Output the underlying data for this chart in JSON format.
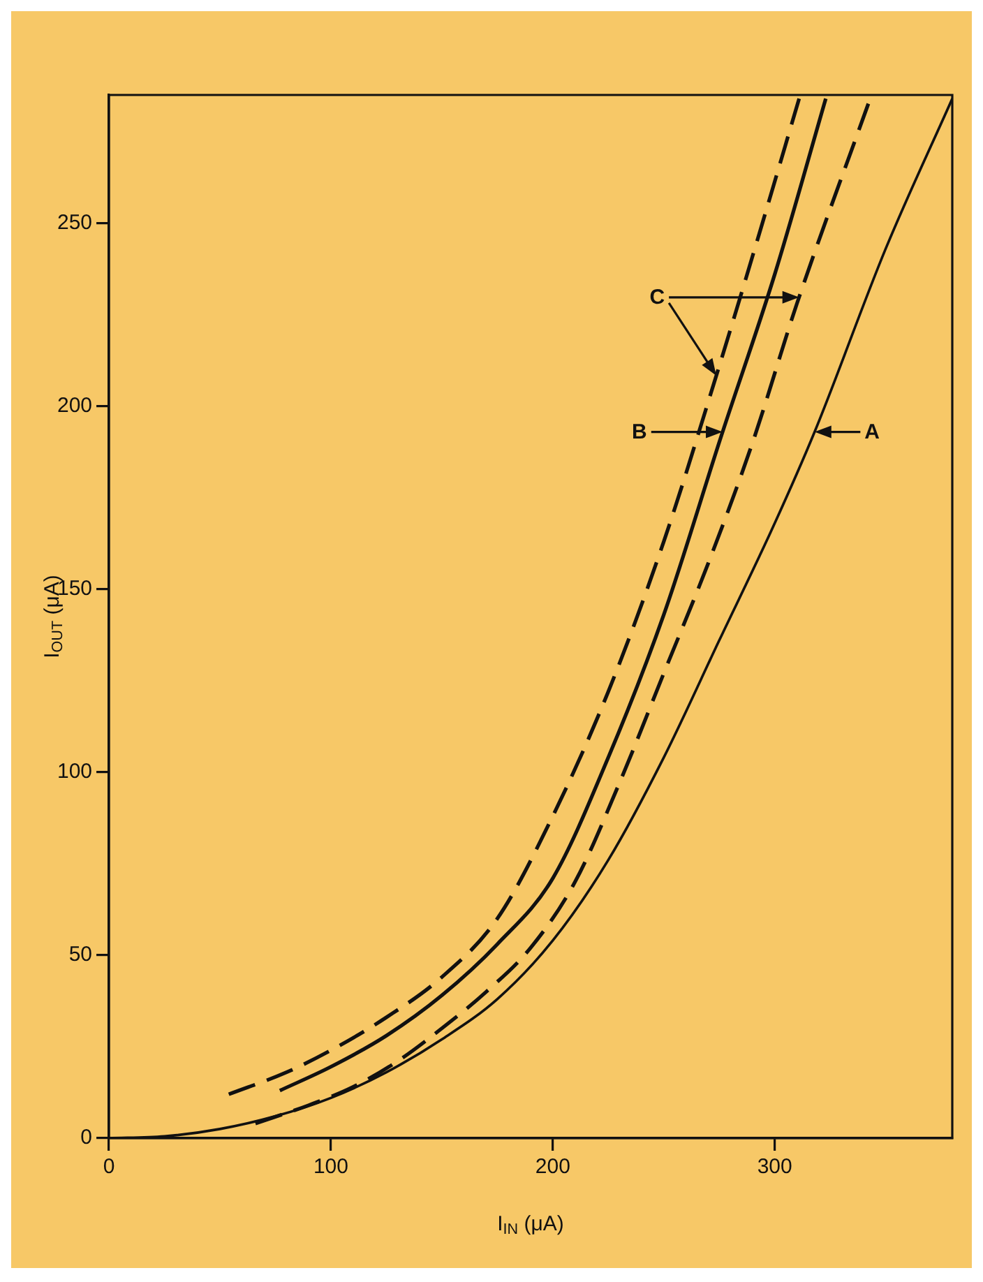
{
  "chart_data": {
    "type": "line",
    "xlabel": "I$_{IN}$ (μA)",
    "ylabel": "I$_{OUT}$ (μA)",
    "xlim": [
      0,
      380
    ],
    "ylim": [
      0,
      285
    ],
    "xticks": [
      0,
      100,
      200,
      300
    ],
    "yticks": [
      0,
      50,
      100,
      150,
      200,
      250
    ],
    "grid": false,
    "legend": false,
    "marker": "none",
    "series": [
      {
        "color": "#111111",
        "line_style": "solid",
        "x": [
          0,
          25,
          50,
          75,
          100,
          125,
          150,
          175,
          200,
          225,
          250,
          275,
          300,
          318,
          350,
          380
        ],
        "values": [
          0,
          0.5,
          2.5,
          6,
          11,
          18,
          27,
          38,
          54,
          76,
          104,
          136,
          168,
          193,
          243,
          284
        ]
      },
      {
        "color": "#111111",
        "line_style": "solid",
        "x": [
          77,
          100,
          125,
          150,
          175,
          200,
          225,
          250,
          276,
          300,
          323
        ],
        "values": [
          13,
          19.5,
          28,
          39,
          53,
          71,
          104,
          143,
          192,
          236,
          284
        ]
      },
      {
        "color": "#111111",
        "line_style": "dashed",
        "x": [
          54,
          80,
          100,
          125,
          150,
          175,
          200,
          225,
          250,
          273,
          292,
          311
        ],
        "values": [
          12,
          18,
          24,
          33,
          44,
          60,
          88,
          122,
          163,
          207,
          245,
          284
        ]
      },
      {
        "color": "#111111",
        "line_style": "dashed",
        "x": [
          66,
          90,
          110,
          130,
          150,
          170,
          190,
          210,
          230,
          250,
          270,
          290,
          310,
          343
        ],
        "values": [
          4,
          9,
          14,
          21,
          30,
          40,
          52,
          70,
          97,
          127,
          157,
          190,
          228,
          284
        ]
      }
    ],
    "annotations": [
      "A",
      "B",
      "C"
    ]
  }
}
